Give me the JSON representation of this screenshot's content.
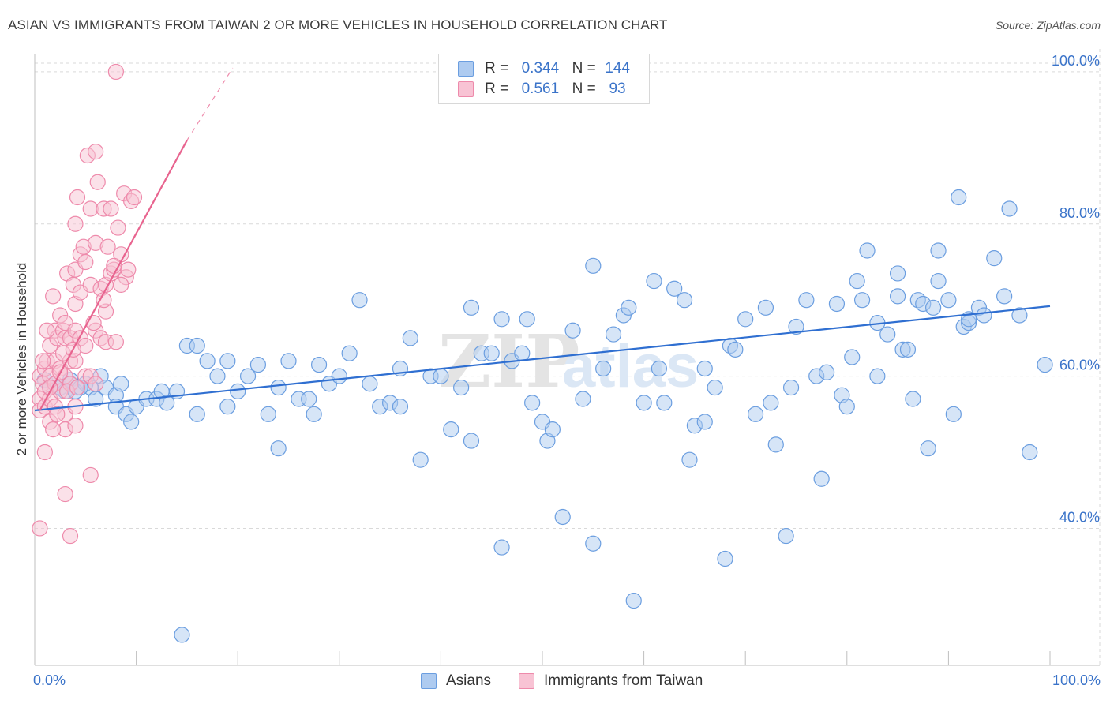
{
  "title": "ASIAN VS IMMIGRANTS FROM TAIWAN 2 OR MORE VEHICLES IN HOUSEHOLD CORRELATION CHART",
  "source": "Source: ZipAtlas.com",
  "watermark": {
    "zip": "ZIP",
    "atlas": "atlas"
  },
  "legend": {
    "asians": {
      "r_label": "R =",
      "r_value": "0.344",
      "n_label": "N =",
      "n_value": "144"
    },
    "taiwan": {
      "r_label": "R =",
      "r_value": "0.561",
      "n_label": "N =",
      "n_value": "93"
    }
  },
  "bottom_legend": {
    "asians": "Asians",
    "taiwan": "Immigrants from Taiwan"
  },
  "colors": {
    "asians_fill": "#aecbf0",
    "asians_stroke": "#6b9ee0",
    "asians_line": "#2f6fd1",
    "taiwan_fill": "#f8c3d4",
    "taiwan_stroke": "#ee8aab",
    "taiwan_line": "#e8648f",
    "tick_text": "#3a73c9",
    "grid": "#d9d9d9"
  },
  "chart_data": {
    "type": "scatter",
    "title": "ASIAN VS IMMIGRANTS FROM TAIWAN 2 OR MORE VEHICLES IN HOUSEHOLD CORRELATION CHART",
    "xlabel": "",
    "ylabel": "2 or more Vehicles in Household",
    "xlim": [
      0,
      100
    ],
    "ylim": [
      22,
      103
    ],
    "x_tick_labels": [
      "0.0%",
      "100.0%"
    ],
    "y_ticks": [
      40,
      60,
      80,
      100
    ],
    "y_tick_labels": [
      "40.0%",
      "60.0%",
      "80.0%",
      "100.0%"
    ],
    "grid": true,
    "series": [
      {
        "name": "Asians",
        "trend": {
          "x": [
            0,
            100
          ],
          "y": [
            55.5,
            69.2
          ]
        },
        "points": [
          [
            1,
            59.5
          ],
          [
            1.5,
            58.5
          ],
          [
            2,
            59
          ],
          [
            2.5,
            58.5
          ],
          [
            3,
            58
          ],
          [
            3.5,
            59.5
          ],
          [
            4,
            58
          ],
          [
            5,
            59
          ],
          [
            5.5,
            58.5
          ],
          [
            6,
            57
          ],
          [
            6.5,
            60
          ],
          [
            7,
            58.5
          ],
          [
            8,
            57.5
          ],
          [
            8,
            56
          ],
          [
            9,
            55
          ],
          [
            9.5,
            54
          ],
          [
            10,
            56
          ],
          [
            11,
            57
          ],
          [
            12,
            57
          ],
          [
            12.5,
            58
          ],
          [
            13,
            56.5
          ],
          [
            14,
            58
          ],
          [
            15,
            64
          ],
          [
            16,
            64
          ],
          [
            16,
            55
          ],
          [
            17,
            62
          ],
          [
            18,
            60
          ],
          [
            19,
            62
          ],
          [
            19,
            56
          ],
          [
            20,
            58
          ],
          [
            21,
            60
          ],
          [
            22,
            61.5
          ],
          [
            23,
            55
          ],
          [
            24,
            50.5
          ],
          [
            24,
            58.5
          ],
          [
            25,
            62
          ],
          [
            26,
            57
          ],
          [
            27,
            57
          ],
          [
            27.5,
            55
          ],
          [
            28,
            61.5
          ],
          [
            29,
            59
          ],
          [
            30,
            60
          ],
          [
            31,
            63
          ],
          [
            32,
            70
          ],
          [
            33,
            59
          ],
          [
            34,
            56
          ],
          [
            35,
            56.5
          ],
          [
            36,
            61
          ],
          [
            36,
            56
          ],
          [
            37,
            65
          ],
          [
            38,
            49
          ],
          [
            39,
            60
          ],
          [
            40,
            60
          ],
          [
            41,
            53
          ],
          [
            42,
            58.5
          ],
          [
            43,
            69
          ],
          [
            43,
            51.5
          ],
          [
            44,
            63
          ],
          [
            45,
            63
          ],
          [
            46,
            67.5
          ],
          [
            46,
            37.5
          ],
          [
            47,
            62
          ],
          [
            48,
            63
          ],
          [
            48.5,
            67.5
          ],
          [
            49,
            56.5
          ],
          [
            50,
            54
          ],
          [
            50.5,
            51.5
          ],
          [
            51,
            53
          ],
          [
            52,
            41.5
          ],
          [
            53,
            66
          ],
          [
            54,
            57
          ],
          [
            55,
            74.5
          ],
          [
            55,
            38
          ],
          [
            56,
            61
          ],
          [
            57,
            65.5
          ],
          [
            58,
            68
          ],
          [
            58.5,
            69
          ],
          [
            59,
            30.5
          ],
          [
            60,
            56.5
          ],
          [
            61,
            72.5
          ],
          [
            61.5,
            61
          ],
          [
            62,
            56.5
          ],
          [
            63,
            71.5
          ],
          [
            64,
            70
          ],
          [
            64.5,
            49
          ],
          [
            65,
            53.5
          ],
          [
            66,
            54
          ],
          [
            66,
            61
          ],
          [
            67,
            58.5
          ],
          [
            68,
            36
          ],
          [
            68.5,
            64
          ],
          [
            69,
            63.5
          ],
          [
            70,
            67.5
          ],
          [
            71,
            55
          ],
          [
            72,
            69
          ],
          [
            72.5,
            56.5
          ],
          [
            73,
            51
          ],
          [
            74,
            39
          ],
          [
            74.5,
            58.5
          ],
          [
            75,
            66.5
          ],
          [
            76,
            70
          ],
          [
            77,
            60
          ],
          [
            77.5,
            46.5
          ],
          [
            78,
            60.5
          ],
          [
            79,
            69.5
          ],
          [
            79.5,
            57.5
          ],
          [
            80,
            56
          ],
          [
            80.5,
            62.5
          ],
          [
            81,
            72.5
          ],
          [
            81.5,
            70
          ],
          [
            82,
            76.5
          ],
          [
            83,
            60
          ],
          [
            83,
            67
          ],
          [
            84,
            65.5
          ],
          [
            85,
            73.5
          ],
          [
            85,
            70.5
          ],
          [
            85.5,
            63.5
          ],
          [
            86,
            63.5
          ],
          [
            86.5,
            57
          ],
          [
            87,
            70
          ],
          [
            87.5,
            69.5
          ],
          [
            88,
            50.5
          ],
          [
            88.5,
            69
          ],
          [
            89,
            76.5
          ],
          [
            89,
            72.5
          ],
          [
            90,
            70
          ],
          [
            90.5,
            55
          ],
          [
            91,
            83.5
          ],
          [
            91.5,
            66.5
          ],
          [
            92,
            67
          ],
          [
            92,
            67.5
          ],
          [
            93,
            69
          ],
          [
            93.5,
            68
          ],
          [
            94.5,
            75.5
          ],
          [
            95.5,
            70.5
          ],
          [
            96,
            82
          ],
          [
            97,
            68
          ],
          [
            98,
            50
          ],
          [
            99.5,
            61.5
          ],
          [
            14.5,
            26
          ],
          [
            3.5,
            59
          ],
          [
            4.5,
            58.5
          ],
          [
            8.5,
            59
          ]
        ]
      },
      {
        "name": "Immigrants from Taiwan",
        "trend": {
          "x": [
            0.5,
            15
          ],
          "y": [
            55.5,
            91
          ]
        },
        "trend_dashed": {
          "x": [
            15,
            19.5
          ],
          "y": [
            91,
            100.5
          ]
        },
        "points": [
          [
            0.5,
            60
          ],
          [
            0.5,
            57
          ],
          [
            0.5,
            55.5
          ],
          [
            0.5,
            40
          ],
          [
            0.8,
            59
          ],
          [
            1,
            61
          ],
          [
            1,
            58
          ],
          [
            1,
            56
          ],
          [
            1,
            50
          ],
          [
            1.2,
            62
          ],
          [
            1.5,
            64
          ],
          [
            1.5,
            60
          ],
          [
            1.5,
            57
          ],
          [
            1.5,
            54
          ],
          [
            1.8,
            70.5
          ],
          [
            2,
            66
          ],
          [
            2,
            62
          ],
          [
            2,
            59
          ],
          [
            2,
            56
          ],
          [
            2.2,
            65
          ],
          [
            2.5,
            68
          ],
          [
            2.5,
            61
          ],
          [
            2.5,
            58
          ],
          [
            2.8,
            66
          ],
          [
            3,
            67
          ],
          [
            3,
            65
          ],
          [
            3,
            60
          ],
          [
            3,
            55
          ],
          [
            3,
            53
          ],
          [
            3,
            44.5
          ],
          [
            3.2,
            73.5
          ],
          [
            3.5,
            65
          ],
          [
            3.5,
            62
          ],
          [
            3.5,
            59
          ],
          [
            3.5,
            39
          ],
          [
            3.8,
            72
          ],
          [
            4,
            80
          ],
          [
            4,
            74
          ],
          [
            4,
            69.5
          ],
          [
            4,
            66
          ],
          [
            4,
            62
          ],
          [
            4,
            56
          ],
          [
            4,
            53.5
          ],
          [
            4.2,
            83.5
          ],
          [
            4.5,
            76
          ],
          [
            4.5,
            71
          ],
          [
            4.5,
            65
          ],
          [
            4.8,
            77
          ],
          [
            5,
            75
          ],
          [
            5,
            64
          ],
          [
            5,
            60
          ],
          [
            5.2,
            89
          ],
          [
            5.5,
            82
          ],
          [
            5.5,
            72
          ],
          [
            5.5,
            60
          ],
          [
            5.5,
            47
          ],
          [
            6,
            89.5
          ],
          [
            6,
            77.5
          ],
          [
            6,
            66
          ],
          [
            6,
            59
          ],
          [
            6.2,
            85.5
          ],
          [
            6.5,
            71.5
          ],
          [
            6.5,
            65
          ],
          [
            6.8,
            82
          ],
          [
            7,
            72
          ],
          [
            7,
            68.5
          ],
          [
            7,
            64.5
          ],
          [
            7.2,
            77
          ],
          [
            7.5,
            82
          ],
          [
            7.5,
            73.5
          ],
          [
            7.8,
            74
          ],
          [
            8,
            64.5
          ],
          [
            8,
            100
          ],
          [
            8.2,
            79.5
          ],
          [
            8.5,
            76
          ],
          [
            8.8,
            84
          ],
          [
            9,
            73
          ],
          [
            9.2,
            74
          ],
          [
            9.5,
            83
          ],
          [
            9.8,
            83.5
          ],
          [
            1.5,
            58.5
          ],
          [
            2.5,
            60.5
          ],
          [
            3.2,
            58
          ],
          [
            1.8,
            53
          ],
          [
            2.2,
            55
          ],
          [
            2.8,
            63
          ],
          [
            1.2,
            66
          ],
          [
            0.8,
            62
          ],
          [
            3.8,
            63.5
          ],
          [
            4.2,
            58.5
          ],
          [
            5.8,
            67
          ],
          [
            6.8,
            70
          ],
          [
            7.8,
            74.5
          ],
          [
            8.5,
            72
          ]
        ]
      }
    ]
  }
}
